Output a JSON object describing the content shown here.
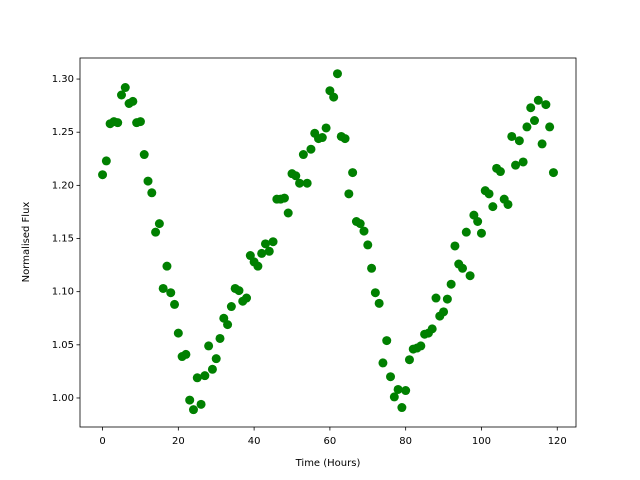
{
  "chart_data": {
    "type": "scatter",
    "xlabel": "Time (Hours)",
    "ylabel": "Normalised Flux",
    "color": "#008000",
    "x": [
      0,
      1,
      2,
      3,
      4,
      5,
      6,
      7,
      8,
      9,
      10,
      11,
      12,
      13,
      14,
      15,
      16,
      17,
      18,
      19,
      20,
      21,
      22,
      23,
      24,
      25,
      26,
      27,
      28,
      29,
      30,
      31,
      32,
      33,
      34,
      35,
      36,
      37,
      38,
      39,
      40,
      41,
      42,
      43,
      44,
      45,
      46,
      47,
      48,
      49,
      50,
      51,
      52,
      53,
      54,
      55,
      56,
      57,
      58,
      59,
      60,
      61,
      62,
      63,
      64,
      65,
      66,
      67,
      68,
      69,
      70,
      71,
      72,
      73,
      74,
      75,
      76,
      77,
      78,
      79,
      80,
      81,
      82,
      83,
      84,
      85,
      86,
      87,
      88,
      89,
      90,
      91,
      92,
      93,
      94,
      95,
      96,
      97,
      98,
      99,
      100,
      101,
      102,
      103,
      104,
      105,
      106,
      107,
      108,
      109,
      110,
      111,
      112,
      113,
      114,
      115,
      116,
      117,
      118,
      119
    ],
    "values": [
      1.21,
      1.223,
      1.258,
      1.26,
      1.259,
      1.285,
      1.292,
      1.277,
      1.279,
      1.259,
      1.26,
      1.229,
      1.204,
      1.193,
      1.156,
      1.164,
      1.103,
      1.124,
      1.099,
      1.088,
      1.061,
      1.039,
      1.041,
      0.998,
      0.989,
      1.019,
      0.994,
      1.021,
      1.049,
      1.027,
      1.037,
      1.056,
      1.075,
      1.069,
      1.086,
      1.103,
      1.101,
      1.091,
      1.094,
      1.134,
      1.128,
      1.124,
      1.136,
      1.145,
      1.138,
      1.147,
      1.187,
      1.187,
      1.188,
      1.174,
      1.211,
      1.209,
      1.202,
      1.229,
      1.202,
      1.234,
      1.249,
      1.244,
      1.245,
      1.254,
      1.289,
      1.283,
      1.305,
      1.246,
      1.244,
      1.192,
      1.212,
      1.166,
      1.164,
      1.157,
      1.144,
      1.122,
      1.099,
      1.089,
      1.033,
      1.054,
      1.02,
      1.001,
      1.008,
      0.991,
      1.007,
      1.036,
      1.046,
      1.047,
      1.049,
      1.06,
      1.061,
      1.065,
      1.094,
      1.077,
      1.081,
      1.093,
      1.107,
      1.143,
      1.126,
      1.122,
      1.156,
      1.115,
      1.172,
      1.166,
      1.155,
      1.195,
      1.192,
      1.18,
      1.216,
      1.213,
      1.187,
      1.182,
      1.246,
      1.219,
      1.242,
      1.222,
      1.255,
      1.273,
      1.261,
      1.28,
      1.239,
      1.276,
      1.255,
      1.212
    ],
    "xlim": [
      -5.95,
      124.95
    ],
    "ylim": [
      0.9727,
      1.3198
    ],
    "xticks": [
      0,
      20,
      40,
      60,
      80,
      100,
      120
    ],
    "yticks": [
      {
        "value": 1.0,
        "label": "1.00"
      },
      1.05,
      {
        "value": 1.1,
        "label": "1.10"
      },
      1.15,
      {
        "value": 1.2,
        "label": "1.20"
      },
      1.25,
      {
        "value": 1.3,
        "label": "1.30"
      }
    ]
  }
}
